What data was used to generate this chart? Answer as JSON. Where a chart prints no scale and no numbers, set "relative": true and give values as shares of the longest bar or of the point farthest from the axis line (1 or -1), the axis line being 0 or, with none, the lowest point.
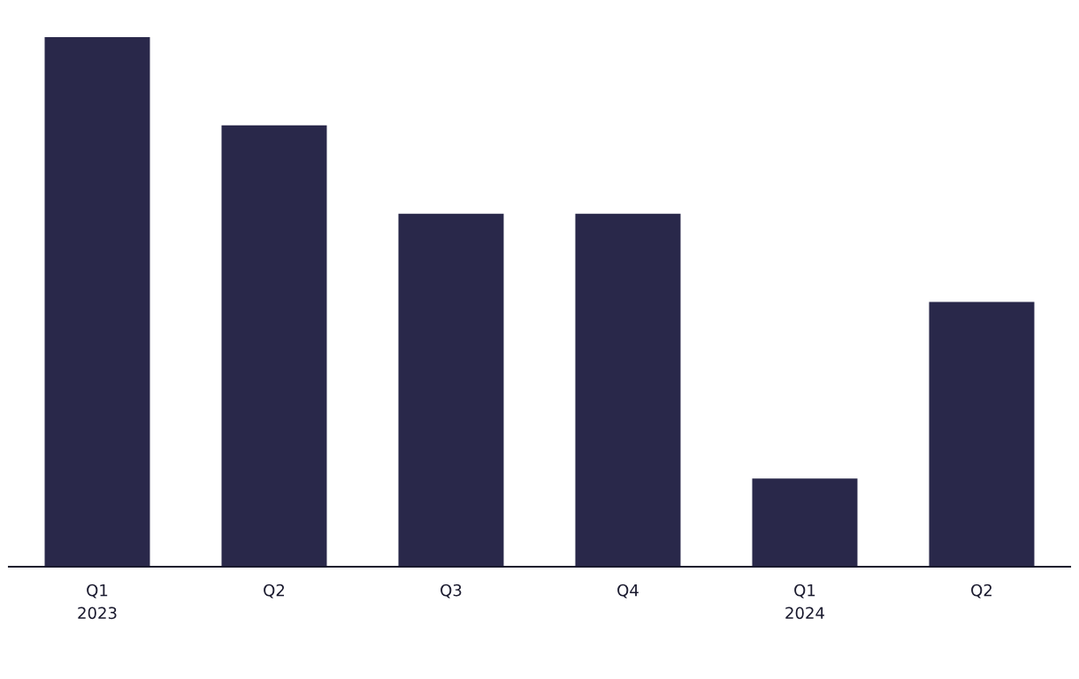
{
  "chart_data": {
    "type": "bar",
    "relative": true,
    "categories": [
      "Q1\n2023",
      "Q2",
      "Q3",
      "Q4",
      "Q1\n2024",
      "Q2"
    ],
    "values": [
      1,
      0.8333,
      0.6667,
      0.6667,
      0.1667,
      0.5
    ],
    "color": "#29284a",
    "grid": false,
    "legend": false
  }
}
